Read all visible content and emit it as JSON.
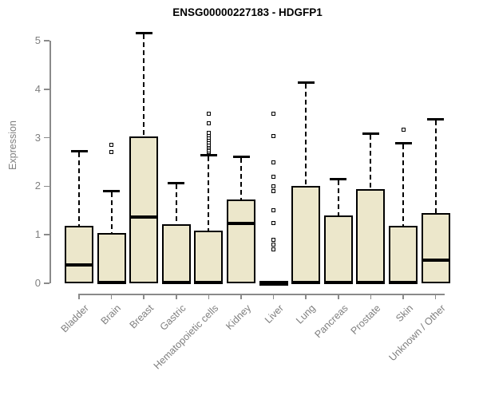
{
  "chart_data": {
    "type": "boxplot",
    "title": "ENSG00000227183 - HDGFP1",
    "ylabel": "Expression",
    "xlabel": "",
    "ylim": [
      0,
      5
    ],
    "yticks": [
      0,
      1,
      2,
      3,
      4,
      5
    ],
    "grid": false,
    "legend": false,
    "box_fill_color": "#ECE7CB",
    "box_border_color": "#000000",
    "axis_color": "#8A8A8A",
    "tick_label_color": "#7F7F7F",
    "title_color": "#000000",
    "categories": [
      "Bladder",
      "Brain",
      "Breast",
      "Gastric",
      "Hematopoietic cells",
      "Kidney",
      "Liver",
      "Lung",
      "Pancreas",
      "Prostate",
      "Skin",
      "Unknown / Other"
    ],
    "boxes": [
      {
        "category": "Bladder",
        "whisker_low": 0,
        "q1": 0,
        "median": 0.38,
        "q3": 1.18,
        "whisker_high": 2.72,
        "outliers": []
      },
      {
        "category": "Brain",
        "whisker_low": 0,
        "q1": 0,
        "median": 0.02,
        "q3": 1.03,
        "whisker_high": 1.9,
        "outliers": [
          2.7,
          2.86
        ]
      },
      {
        "category": "Breast",
        "whisker_low": 0,
        "q1": 0,
        "median": 1.36,
        "q3": 3.03,
        "whisker_high": 5.15,
        "outliers": []
      },
      {
        "category": "Gastric",
        "whisker_low": 0,
        "q1": 0,
        "median": 0.02,
        "q3": 1.22,
        "whisker_high": 2.06,
        "outliers": []
      },
      {
        "category": "Hematopoietic cells",
        "whisker_low": 0,
        "q1": 0,
        "median": 0.02,
        "q3": 1.08,
        "whisker_high": 2.64,
        "outliers": [
          2.7,
          2.74,
          2.78,
          2.82,
          2.86,
          2.9,
          2.95,
          3.0,
          3.05,
          3.1,
          3.3,
          3.5
        ]
      },
      {
        "category": "Kidney",
        "whisker_low": 0,
        "q1": 0,
        "median": 1.24,
        "q3": 1.72,
        "whisker_high": 2.6,
        "outliers": []
      },
      {
        "category": "Liver",
        "whisker_low": 0,
        "q1": 0,
        "median": 0.02,
        "q3": 0.02,
        "whisker_high": 0.02,
        "outliers": [
          0.7,
          0.8,
          0.9,
          1.25,
          1.5,
          1.9,
          2.0,
          2.2,
          2.5,
          3.03,
          3.5
        ]
      },
      {
        "category": "Lung",
        "whisker_low": 0,
        "q1": 0,
        "median": 0.02,
        "q3": 2.0,
        "whisker_high": 4.14,
        "outliers": []
      },
      {
        "category": "Pancreas",
        "whisker_low": 0,
        "q1": 0,
        "median": 0.02,
        "q3": 1.4,
        "whisker_high": 2.15,
        "outliers": []
      },
      {
        "category": "Prostate",
        "whisker_low": 0,
        "q1": 0,
        "median": 0.02,
        "q3": 1.94,
        "whisker_high": 3.09,
        "outliers": []
      },
      {
        "category": "Skin",
        "whisker_low": 0,
        "q1": 0,
        "median": 0.02,
        "q3": 1.18,
        "whisker_high": 2.88,
        "outliers": [
          3.16
        ]
      },
      {
        "category": "Unknown / Other",
        "whisker_low": 0,
        "q1": 0,
        "median": 0.47,
        "q3": 1.45,
        "whisker_high": 3.38,
        "outliers": []
      }
    ]
  }
}
